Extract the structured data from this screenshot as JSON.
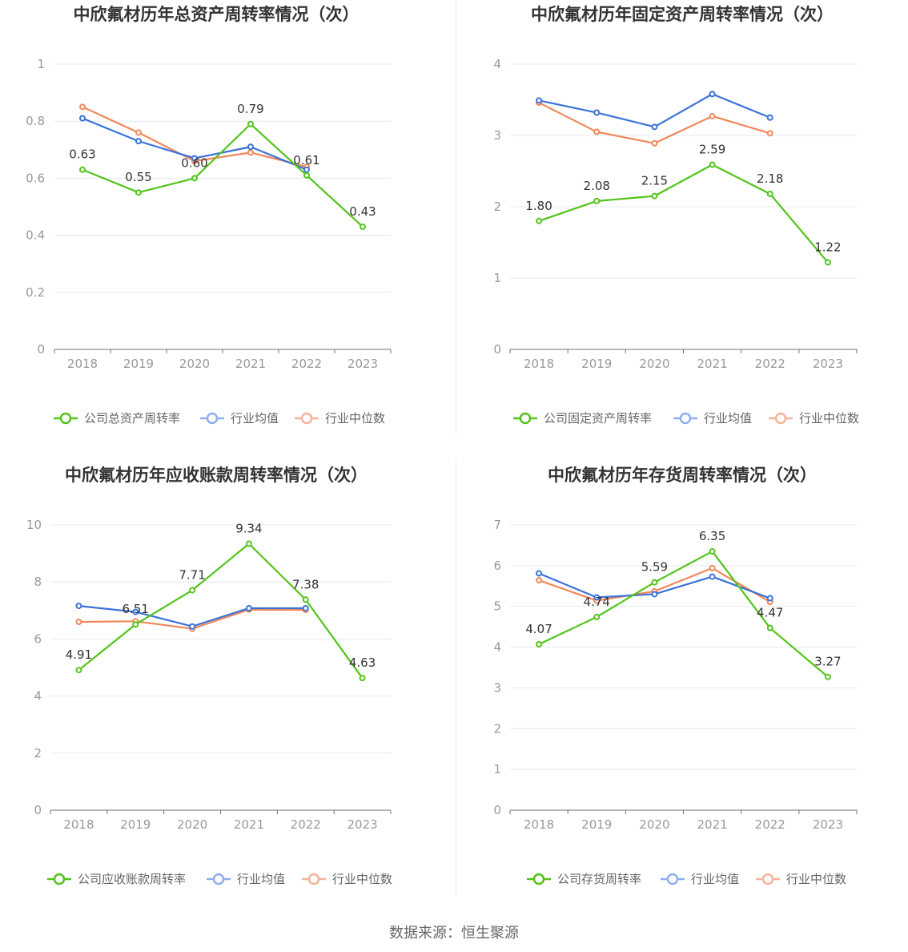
{
  "colors": {
    "company": "#52c41a",
    "avg": "#3b72d9",
    "median": "#f0875a",
    "avg_legend": "#8eaef0",
    "median_legend": "#f5b49a"
  },
  "source": "数据来源：恒生聚源",
  "legend_avg": "行业均值",
  "legend_median": "行业中位数",
  "chart_data": [
    {
      "type": "line",
      "title": "中欣氟材历年总资产周转率情况（次）",
      "categories": [
        "2018",
        "2019",
        "2020",
        "2021",
        "2022",
        "2023"
      ],
      "ylim": [
        0,
        1
      ],
      "yticks": [
        0,
        0.2,
        0.4,
        0.6,
        0.8,
        1
      ],
      "ytick_labels": [
        "0",
        "0.2",
        "0.4",
        "0.6",
        "0.8",
        "1"
      ],
      "series": [
        {
          "name": "公司总资产周转率",
          "values": [
            0.63,
            0.55,
            0.6,
            0.79,
            0.61,
            0.43
          ],
          "labels": [
            "0.63",
            "0.55",
            "0.60",
            "0.79",
            "0.61",
            "0.43"
          ]
        },
        {
          "name": "行业均值",
          "values": [
            0.81,
            0.73,
            0.67,
            0.71,
            0.63,
            null
          ]
        },
        {
          "name": "行业中位数",
          "values": [
            0.85,
            0.76,
            0.66,
            0.69,
            0.64,
            null
          ]
        }
      ]
    },
    {
      "type": "line",
      "title": "中欣氟材历年固定资产周转率情况（次）",
      "categories": [
        "2018",
        "2019",
        "2020",
        "2021",
        "2022",
        "2023"
      ],
      "ylim": [
        0,
        4
      ],
      "yticks": [
        0,
        1,
        2,
        3,
        4
      ],
      "ytick_labels": [
        "0",
        "1",
        "2",
        "3",
        "4"
      ],
      "series": [
        {
          "name": "公司固定资产周转率",
          "values": [
            1.8,
            2.08,
            2.15,
            2.59,
            2.18,
            1.22
          ],
          "labels": [
            "1.80",
            "2.08",
            "2.15",
            "2.59",
            "2.18",
            "1.22"
          ]
        },
        {
          "name": "行业均值",
          "values": [
            3.49,
            3.32,
            3.12,
            3.58,
            3.25,
            null
          ]
        },
        {
          "name": "行业中位数",
          "values": [
            3.46,
            3.05,
            2.89,
            3.27,
            3.03,
            null
          ]
        }
      ]
    },
    {
      "type": "line",
      "title": "中欣氟材历年应收账款周转率情况（次）",
      "categories": [
        "2018",
        "2019",
        "2020",
        "2021",
        "2022",
        "2023"
      ],
      "ylim": [
        0,
        10
      ],
      "yticks": [
        0,
        2,
        4,
        6,
        8,
        10
      ],
      "ytick_labels": [
        "0",
        "2",
        "4",
        "6",
        "8",
        "10"
      ],
      "series": [
        {
          "name": "公司应收账款周转率",
          "values": [
            4.91,
            6.51,
            7.71,
            9.34,
            7.38,
            4.63
          ],
          "labels": [
            "4.91",
            "6.51",
            "7.71",
            "9.34",
            "7.38",
            "4.63"
          ]
        },
        {
          "name": "行业均值",
          "values": [
            7.16,
            6.95,
            6.44,
            7.08,
            7.08,
            null
          ]
        },
        {
          "name": "行业中位数",
          "values": [
            6.6,
            6.62,
            6.36,
            7.03,
            7.02,
            null
          ]
        }
      ]
    },
    {
      "type": "line",
      "title": "中欣氟材历年存货周转率情况（次）",
      "categories": [
        "2018",
        "2019",
        "2020",
        "2021",
        "2022",
        "2023"
      ],
      "ylim": [
        0,
        7
      ],
      "yticks": [
        0,
        1,
        2,
        3,
        4,
        5,
        6,
        7
      ],
      "ytick_labels": [
        "0",
        "1",
        "2",
        "3",
        "4",
        "5",
        "6",
        "7"
      ],
      "series": [
        {
          "name": "公司存货周转率",
          "values": [
            4.07,
            4.74,
            5.59,
            6.35,
            4.47,
            3.27
          ],
          "labels": [
            "4.07",
            "4.74",
            "5.59",
            "6.35",
            "4.47",
            "3.27"
          ]
        },
        {
          "name": "行业均值",
          "values": [
            5.81,
            5.22,
            5.3,
            5.73,
            5.2,
            null
          ]
        },
        {
          "name": "行业中位数",
          "values": [
            5.64,
            5.14,
            5.37,
            5.94,
            5.11,
            null
          ]
        }
      ]
    }
  ]
}
